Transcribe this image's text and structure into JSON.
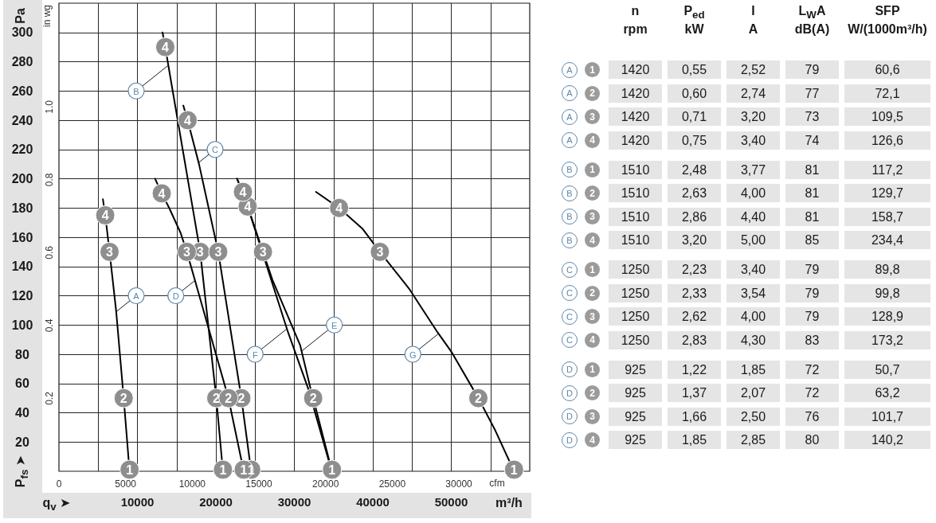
{
  "chart_data": [
    {
      "type": "line",
      "xlabel": "q$_{v}$ ➤",
      "ylabel": "P$_{fs}$ ➤",
      "y2label": "in wg",
      "x2label": "cfm",
      "annotations": [
        "Pa",
        "m³/h",
        {
          "text": "A",
          "x": 9850,
          "y": 120
        },
        {
          "text": "B",
          "x": 9850,
          "y": 260
        },
        {
          "text": "C",
          "x": 19900,
          "y": 220
        },
        {
          "text": "D",
          "x": 14900,
          "y": 120
        },
        {
          "text": "E",
          "x": 35100,
          "y": 100
        },
        {
          "text": "F",
          "x": 25000,
          "y": 80
        },
        {
          "text": "G",
          "x": 45100,
          "y": 80
        },
        {
          "text": "4",
          "x": 5900,
          "y": 175
        },
        {
          "text": "3",
          "x": 6450,
          "y": 150
        },
        {
          "text": "2",
          "x": 8250,
          "y": 50
        },
        {
          "text": "1",
          "x": 9000,
          "y": 0
        },
        {
          "text": "4",
          "x": 13550,
          "y": 290
        },
        {
          "text": "3",
          "x": 18000,
          "y": 150
        },
        {
          "text": "2",
          "x": 20050,
          "y": 50
        },
        {
          "text": "1",
          "x": 20900,
          "y": 0
        },
        {
          "text": "4",
          "x": 16400,
          "y": 240
        },
        {
          "text": "3",
          "x": 20300,
          "y": 150
        },
        {
          "text": "2",
          "x": 23250,
          "y": 50
        },
        {
          "text": "1",
          "x": 24500,
          "y": 0
        },
        {
          "text": "4",
          "x": 13100,
          "y": 190
        },
        {
          "text": "3",
          "x": 16300,
          "y": 150
        },
        {
          "text": "2",
          "x": 21600,
          "y": 50
        },
        {
          "text": "1",
          "x": 23550,
          "y": 0
        },
        {
          "text": "4",
          "x": 24050,
          "y": 181
        },
        {
          "text": "3",
          "x": 26000,
          "y": 150
        },
        {
          "text": "2",
          "x": 32400,
          "y": 50
        },
        {
          "text": "1",
          "x": 34800,
          "y": 0
        },
        {
          "text": "4",
          "x": 23450,
          "y": 191
        },
        {
          "text": "4",
          "x": 35700,
          "y": 180
        },
        {
          "text": "3",
          "x": 40900,
          "y": 150
        },
        {
          "text": "2",
          "x": 53450,
          "y": 50
        },
        {
          "text": "1",
          "x": 58000,
          "y": 0
        }
      ],
      "xlim": [
        0,
        60000
      ],
      "xticks": [
        {
          "value": 5000,
          "label": null
        },
        10000,
        {
          "value": 15000,
          "label": null
        },
        20000,
        {
          "value": 25000,
          "label": null
        },
        30000,
        {
          "value": 35000,
          "label": null
        },
        40000,
        {
          "value": 45000,
          "label": null
        },
        50000,
        {
          "value": 55000,
          "label": null
        }
      ],
      "x2lim": [
        0,
        35315
      ],
      "x2ticks": [
        0,
        5000,
        10000,
        15000,
        20000,
        25000,
        30000
      ],
      "ylim": [
        0,
        320
      ],
      "yticks": [
        20,
        40,
        60,
        80,
        100,
        120,
        140,
        160,
        180,
        200,
        220,
        240,
        260,
        280,
        300
      ],
      "y2lim": [
        0,
        1.285
      ],
      "y2ticks": [
        0.2,
        0.4,
        0.6,
        0.8,
        {
          "value": 1,
          "label": "1.0"
        }
      ],
      "grid": true,
      "series": [
        {
          "color": "#000000",
          "x": [
            5600,
            5900,
            6450,
            7300,
            8250,
            9000
          ],
          "values": [
            186,
            175,
            150,
            109,
            50,
            0
          ]
        },
        {
          "color": "#000000",
          "x": [
            13200,
            13550,
            14050,
            18000,
            20050,
            20900
          ],
          "values": [
            300,
            290,
            274,
            150,
            50,
            0
          ]
        },
        {
          "color": "#000000",
          "x": [
            15850,
            16400,
            17850,
            20300,
            23250,
            24500
          ],
          "values": [
            250,
            240,
            210,
            150,
            50,
            0
          ]
        },
        {
          "color": "#000000",
          "x": [
            12250,
            13100,
            14050,
            15500,
            16300,
            21600,
            23550
          ],
          "values": [
            200,
            190,
            180,
            163,
            150,
            50,
            0
          ]
        },
        {
          "color": "#000000",
          "x": [
            22700,
            24050,
            26000,
            27200,
            30750,
            32000,
            32400,
            34800
          ],
          "values": [
            200,
            181,
            150,
            131,
            86,
            58,
            50,
            0
          ]
        },
        {
          "color": "#000000",
          "x": [
            22700,
            23450,
            29200,
            31800,
            34400
          ],
          "values": [
            200,
            191,
            95,
            56,
            7
          ]
        },
        {
          "color": "#000000",
          "x": [
            32750,
            35700,
            38650,
            40900,
            44600,
            48250,
            50100,
            53450,
            55600,
            58000
          ],
          "values": [
            191,
            180,
            166,
            150,
            125,
            95,
            81,
            50,
            28,
            0
          ]
        }
      ]
    },
    {
      "type": "other",
      "categories": [
        "n\nrpm",
        "P$_{ed}$\nkW",
        "I\nA",
        "L$_{W}$A\ndB(A)",
        "SFP\nW/(1000m³/h)"
      ],
      "y_categories": [
        "A",
        "A",
        "A",
        "A",
        "B",
        "B",
        "B",
        "B",
        "C",
        "C",
        "C",
        "C",
        "D",
        "D",
        "D",
        "D"
      ],
      "y2_categories": [
        "1",
        "2",
        "3",
        "4",
        "1",
        "2",
        "3",
        "4",
        "1",
        "2",
        "3",
        "4",
        "1",
        "2",
        "3",
        "4"
      ],
      "cell_labels": [
        [
          "1420",
          "0,55",
          "2,52",
          "79",
          "60,6"
        ],
        [
          "1420",
          "0,60",
          "2,74",
          "77",
          "72,1"
        ],
        [
          "1420",
          "0,71",
          "3,20",
          "73",
          "109,5"
        ],
        [
          "1420",
          "0,75",
          "3,40",
          "74",
          "126,6"
        ],
        [
          "1510",
          "2,48",
          "3,77",
          "81",
          "117,2"
        ],
        [
          "1510",
          "2,63",
          "4,00",
          "81",
          "129,7"
        ],
        [
          "1510",
          "2,86",
          "4,40",
          "81",
          "158,7"
        ],
        [
          "1510",
          "3,20",
          "5,00",
          "85",
          "234,4"
        ],
        [
          "1250",
          "2,23",
          "3,40",
          "79",
          "89,8"
        ],
        [
          "1250",
          "2,33",
          "3,54",
          "79",
          "99,8"
        ],
        [
          "1250",
          "2,62",
          "4,00",
          "79",
          "128,9"
        ],
        [
          "1250",
          "2,83",
          "4,30",
          "83",
          "173,2"
        ],
        [
          "925",
          "1,22",
          "1,85",
          "72",
          "50,7"
        ],
        [
          "925",
          "1,37",
          "2,07",
          "72",
          "63,2"
        ],
        [
          "925",
          "1,66",
          "2,50",
          "76",
          "101,7"
        ],
        [
          "925",
          "1,85",
          "2,85",
          "80",
          "140,2"
        ]
      ]
    }
  ]
}
